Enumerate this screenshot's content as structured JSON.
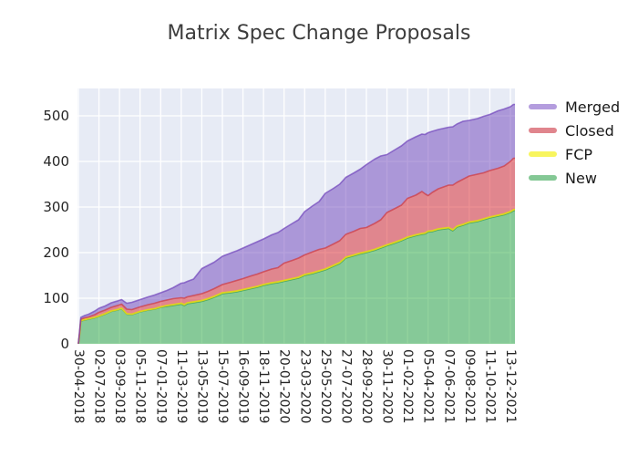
{
  "chart_data": {
    "type": "area",
    "variant": "stacked",
    "title": "Matrix Spec Change Proposals",
    "xlabel": "",
    "ylabel": "",
    "grid": true,
    "plot_bg": "#e7ebf5",
    "grid_color": "#ffffff",
    "ylim": [
      0,
      560
    ],
    "y_ticks": [
      0,
      100,
      200,
      300,
      400,
      500
    ],
    "x_tick_labels": [
      "30-04-2018",
      "02-07-2018",
      "03-09-2018",
      "05-11-2018",
      "07-01-2019",
      "11-03-2019",
      "13-05-2019",
      "15-07-2019",
      "16-09-2019",
      "18-11-2019",
      "20-01-2020",
      "23-03-2020",
      "25-05-2020",
      "27-07-2020",
      "28-09-2020",
      "30-11-2020",
      "01-02-2021",
      "05-04-2021",
      "07-06-2021",
      "09-08-2021",
      "11-10-2021",
      "13-12-2021"
    ],
    "legend_position": "right-outside",
    "stack_order_bottom_to_top": [
      "New",
      "FCP",
      "Closed",
      "Merged"
    ],
    "legend_order_top_to_bottom": [
      "Merged",
      "Closed",
      "FCP",
      "New"
    ],
    "series_styles": {
      "New": {
        "fill": "rgba(37,167,59,0.5)",
        "stroke": "rgba(37,150,59,0.6)",
        "legend_color": "#84c895"
      },
      "FCP": {
        "fill": "rgba(255,253,0,0.55)",
        "stroke": "rgba(222,214,26,0.95)",
        "legend_color": "#f8f55e"
      },
      "Closed": {
        "fill": "rgba(217,33,39,0.5)",
        "stroke": "rgba(205,60,70,0.75)",
        "legend_color": "#e0858d"
      },
      "Merged": {
        "fill": "rgba(111,67,187,0.5)",
        "stroke": "rgba(111,67,187,0.7)",
        "legend_color": "#b49dde"
      }
    },
    "samples": {
      "t_units": "x position in tick intervals (tick k of x_tick_labels sits at t=k)",
      "t_max": 21.25,
      "t": [
        0,
        0.06,
        0.12,
        0.3,
        0.5,
        0.8,
        1,
        1.3,
        1.6,
        1.9,
        2.1,
        2.35,
        2.6,
        2.8,
        3,
        3.4,
        3.7,
        4,
        4.3,
        4.6,
        5,
        5.15,
        5.3,
        5.6,
        6,
        6.3,
        6.6,
        7,
        7.4,
        7.7,
        8,
        8.4,
        8.7,
        9,
        9.4,
        9.7,
        10,
        10.4,
        10.7,
        11,
        11.4,
        11.7,
        12,
        12.4,
        12.7,
        13,
        13.4,
        13.7,
        14,
        14.4,
        14.7,
        15,
        15.4,
        15.7,
        16,
        16.4,
        16.7,
        16.85,
        17,
        17.2,
        17.5,
        18,
        18.2,
        18.4,
        18.7,
        19,
        19.4,
        19.7,
        20,
        20.4,
        20.7,
        21,
        21.15,
        21.25
      ],
      "New": [
        0,
        20,
        50,
        52,
        54,
        57,
        60,
        65,
        71,
        74,
        77,
        65,
        64,
        67,
        70,
        74,
        76,
        80,
        82,
        84,
        87,
        84,
        88,
        90,
        93,
        97,
        102,
        110,
        112,
        114,
        117,
        121,
        124,
        128,
        132,
        134,
        137,
        141,
        144,
        150,
        154,
        158,
        162,
        170,
        176,
        188,
        193,
        197,
        200,
        205,
        210,
        215,
        221,
        226,
        232,
        237,
        240,
        241,
        245,
        246,
        250,
        253,
        248,
        256,
        260,
        265,
        268,
        272,
        276,
        280,
        283,
        288,
        292,
        293
      ],
      "FCP": [
        0,
        1,
        1,
        1,
        1,
        1,
        1,
        1,
        1,
        1,
        1,
        1,
        1,
        1,
        1,
        1,
        1,
        1,
        2,
        2,
        2,
        2,
        2,
        2,
        2,
        2,
        2,
        2,
        2,
        2,
        2,
        2,
        2,
        2,
        2,
        2,
        2,
        2,
        2,
        2,
        2,
        2,
        2,
        2,
        2,
        2,
        2,
        2,
        2,
        2,
        2,
        2,
        2,
        2,
        2,
        2,
        2,
        2,
        2,
        2,
        2,
        2,
        2,
        2,
        2,
        2,
        2,
        2,
        2,
        2,
        2,
        2,
        2,
        2
      ],
      "Closed": [
        0,
        3,
        3,
        4,
        4,
        6,
        8,
        8,
        8,
        9,
        9,
        10,
        10,
        10,
        10,
        11,
        12,
        12,
        12,
        13,
        12,
        14,
        13,
        14,
        15,
        16,
        17,
        18,
        21,
        23,
        24,
        26,
        27,
        28,
        30,
        31,
        38,
        40,
        42,
        43,
        46,
        47,
        46,
        47,
        48,
        50,
        52,
        54,
        53,
        57,
        60,
        71,
        74,
        76,
        85,
        87,
        92,
        86,
        78,
        84,
        88,
        93,
        98,
        96,
        99,
        101,
        102,
        101,
        102,
        103,
        105,
        110,
        113,
        112
      ],
      "Merged": [
        0,
        4,
        4,
        5,
        6,
        8,
        9,
        9,
        10,
        10,
        10,
        13,
        16,
        16,
        16,
        17,
        18,
        19,
        21,
        24,
        32,
        34,
        34,
        36,
        55,
        57,
        58,
        62,
        64,
        65,
        67,
        69,
        71,
        72,
        75,
        77,
        76,
        81,
        84,
        95,
        101,
        105,
        120,
        122,
        124,
        125,
        128,
        130,
        138,
        141,
        140,
        127,
        129,
        130,
        126,
        128,
        126,
        130,
        138,
        134,
        130,
        127,
        128,
        128,
        127,
        122,
        122,
        124,
        123,
        126,
        125,
        120,
        118,
        118
      ]
    }
  }
}
